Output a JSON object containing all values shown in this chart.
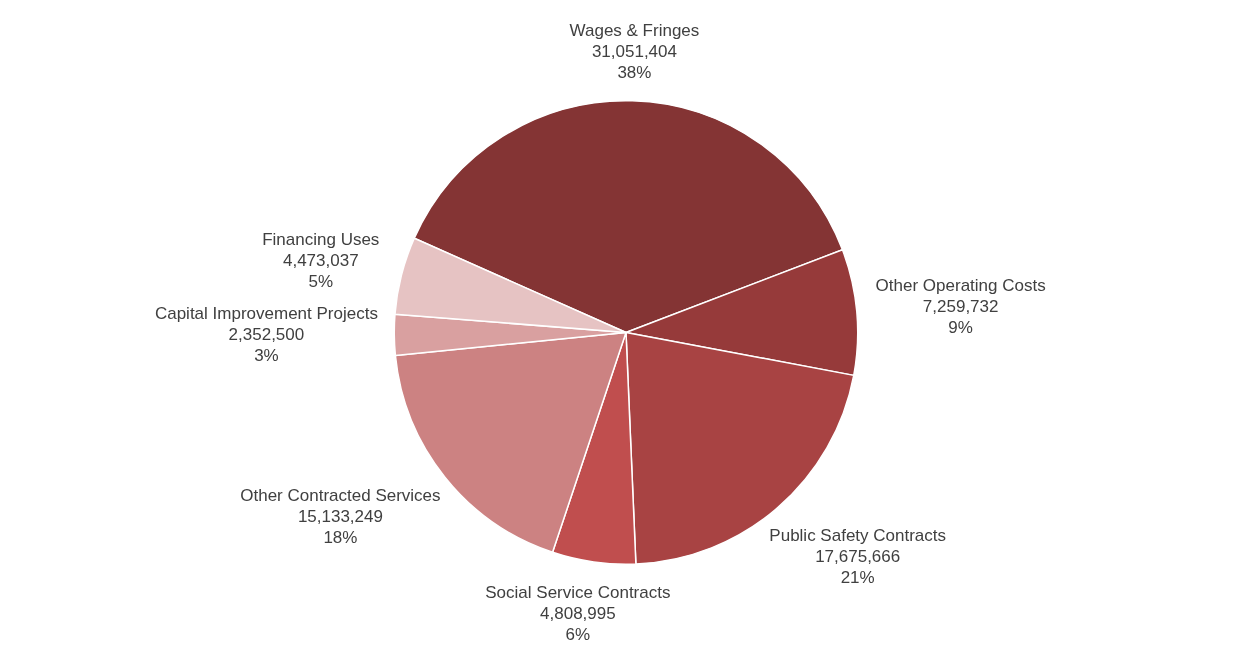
{
  "chart_data": {
    "type": "pie",
    "categories": [
      "Wages & Fringes",
      "Other Operating Costs",
      "Public Safety Contracts",
      "Social Service Contracts",
      "Other Contracted Services",
      "Capital Improvement Projects",
      "Financing Uses"
    ],
    "values": [
      31051404,
      7259732,
      17675666,
      4808995,
      15133249,
      2352500,
      4473037
    ],
    "value_labels": [
      "31,051,404\n38%",
      "7,259,732\n9%",
      "17,675,666\n21%",
      "4,808,995\n6%",
      "15,133,249\n18%",
      "2,352,500\n3%",
      "4,473,037\n5%"
    ],
    "colors": [
      "#843434",
      "#963a3a",
      "#a84343",
      "#c04e4e",
      "#cc8282",
      "#d9a0a0",
      "#e6c3c3"
    ],
    "legend": false
  }
}
